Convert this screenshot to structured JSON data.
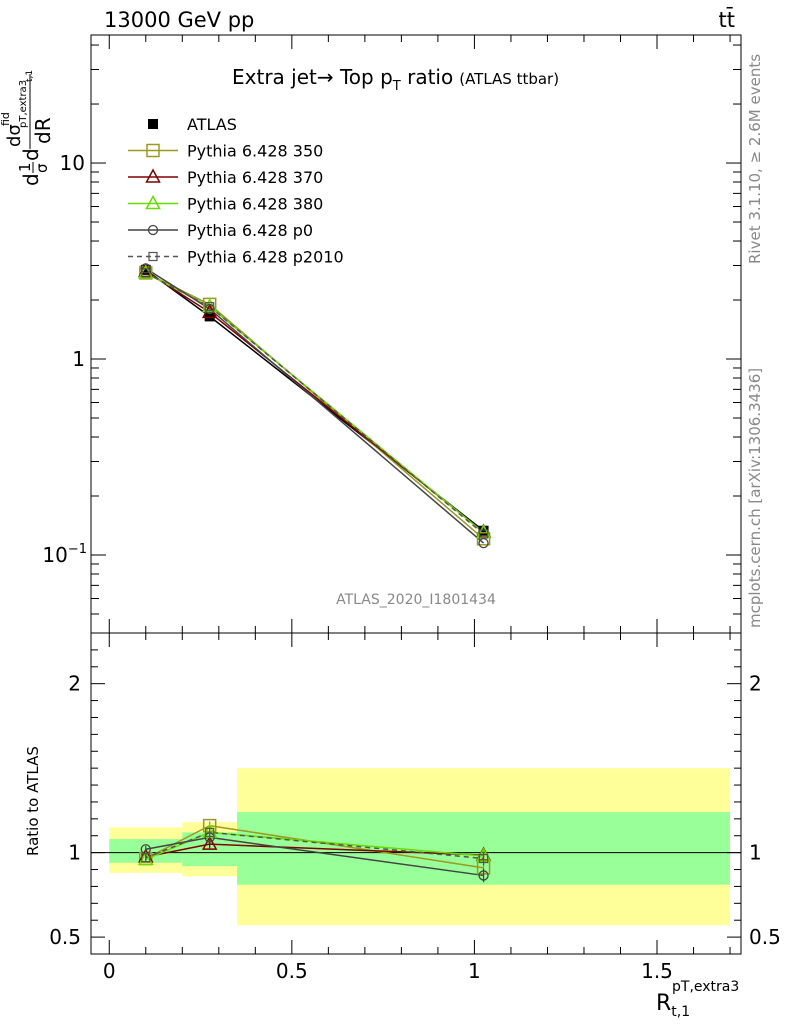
{
  "header": {
    "energy": "13000 GeV pp",
    "process": "tt̄"
  },
  "side_labels": {
    "rivet": "Rivet 3.1.10, ≥ 2.6M events",
    "mcplots": "mcplots.cern.ch [arXiv:1306.3436]"
  },
  "chart_data": [
    {
      "type": "line",
      "panel": "main",
      "title_main": "Extra jet→ Top p",
      "title_sub": "T",
      "title_main2": " ratio",
      "title_small": "(ATLAS ttbar)",
      "analysis_tag": "ATLAS_2020_I1801434",
      "ylabel": "d σ/d R",
      "yscale": "log",
      "ylim": [
        0.04,
        45
      ],
      "xlim": [
        -0.05,
        1.73
      ],
      "yticks": [
        {
          "v": 10,
          "label": "10"
        },
        {
          "v": 1,
          "label": "1"
        },
        {
          "v": 0.1,
          "label": "10",
          "sup": "−1"
        }
      ],
      "xbins": [
        [
          0,
          0.2
        ],
        [
          0.2,
          0.35
        ],
        [
          0.35,
          1.7
        ]
      ],
      "x": [
        0.1,
        0.275,
        1.025
      ],
      "series": [
        {
          "name": "ATLAS",
          "color": "#000000",
          "marker": "filled-square",
          "dash": "",
          "values": [
            2.85,
            1.65,
            0.133
          ],
          "errors": [
            0.1,
            0.07,
            0.006
          ]
        },
        {
          "name": "Pythia 6.428 350",
          "color": "#9a9a20",
          "marker": "open-square",
          "dash": "",
          "values": [
            2.75,
            1.9,
            0.121
          ]
        },
        {
          "name": "Pythia 6.428 370",
          "color": "#800000",
          "marker": "open-triangle",
          "dash": "",
          "values": [
            2.8,
            1.73,
            0.131
          ]
        },
        {
          "name": "Pythia 6.428 380",
          "color": "#66dd00",
          "marker": "open-triangle",
          "dash": "",
          "values": [
            2.75,
            1.85,
            0.13
          ]
        },
        {
          "name": "Pythia 6.428 p0",
          "color": "#444444",
          "marker": "open-circle",
          "dash": "",
          "values": [
            2.9,
            1.8,
            0.115
          ]
        },
        {
          "name": "Pythia 6.428 p2010",
          "color": "#555555",
          "marker": "open-square-small",
          "dash": "5,4",
          "values": [
            2.75,
            1.85,
            0.128
          ]
        }
      ]
    },
    {
      "type": "line",
      "panel": "ratio",
      "ylabel": "Ratio to ATLAS",
      "xlabel": "R",
      "xlabel_sub": "t,1",
      "xlabel_sup": "pT,extra3",
      "ylim": [
        0.4,
        2.3
      ],
      "yticks": [
        {
          "v": 0.5,
          "label": "0.5"
        },
        {
          "v": 1,
          "label": "1"
        },
        {
          "v": 2,
          "label": "2"
        }
      ],
      "xticks": [
        {
          "v": 0,
          "label": "0"
        },
        {
          "v": 0.5,
          "label": "0.5"
        },
        {
          "v": 1,
          "label": "1"
        },
        {
          "v": 1.5,
          "label": "1.5"
        }
      ],
      "bands": [
        {
          "x0": 0.0,
          "x1": 0.2,
          "yellow": [
            0.88,
            1.15
          ],
          "green": [
            0.94,
            1.08
          ]
        },
        {
          "x0": 0.2,
          "x1": 0.35,
          "yellow": [
            0.86,
            1.18
          ],
          "green": [
            0.92,
            1.12
          ]
        },
        {
          "x0": 0.35,
          "x1": 1.7,
          "yellow": [
            0.57,
            1.5
          ],
          "green": [
            0.81,
            1.24
          ]
        }
      ],
      "x": [
        0.1,
        0.275,
        1.025
      ],
      "series": [
        {
          "name": "Pythia 6.428 350",
          "values": [
            0.965,
            1.16,
            0.91
          ],
          "errors": [
            0.02,
            0.025,
            0.04
          ]
        },
        {
          "name": "Pythia 6.428 370",
          "values": [
            0.975,
            1.05,
            0.985
          ],
          "errors": [
            0.02,
            0.025,
            0.04
          ]
        },
        {
          "name": "Pythia 6.428 380",
          "values": [
            0.96,
            1.12,
            0.98
          ],
          "errors": [
            0.02,
            0.025,
            0.04
          ]
        },
        {
          "name": "Pythia 6.428 p0",
          "values": [
            1.02,
            1.09,
            0.865
          ],
          "errors": [
            0.02,
            0.025,
            0.04
          ]
        },
        {
          "name": "Pythia 6.428 p2010",
          "values": [
            0.97,
            1.12,
            0.965
          ],
          "errors": [
            0.02,
            0.025,
            0.04
          ]
        }
      ]
    }
  ]
}
